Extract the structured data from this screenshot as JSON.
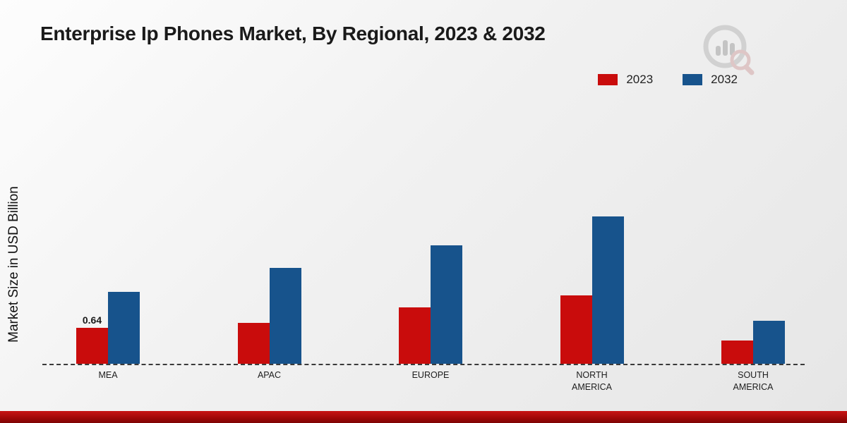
{
  "chart_data": {
    "type": "bar",
    "title": "Enterprise Ip Phones Market, By Regional, 2023 & 2032",
    "xlabel": "",
    "ylabel": "Market Size in USD Billion",
    "categories": [
      "MEA",
      "APAC",
      "EUROPE",
      "NORTH AMERICA",
      "SOUTH AMERICA"
    ],
    "series": [
      {
        "name": "2023",
        "color": "#c90c0c",
        "values": [
          0.64,
          0.73,
          1.0,
          1.21,
          0.41
        ]
      },
      {
        "name": "2032",
        "color": "#17538c",
        "values": [
          1.28,
          1.7,
          2.1,
          2.61,
          0.76
        ]
      }
    ],
    "ylim": [
      0,
      3
    ],
    "grid": false,
    "legend_position": "top-right",
    "annotations": [
      {
        "series": "2023",
        "category": "MEA",
        "text": "0.64"
      }
    ]
  },
  "footer": {
    "brand_colors": [
      "#c81414",
      "#7e0404"
    ]
  }
}
